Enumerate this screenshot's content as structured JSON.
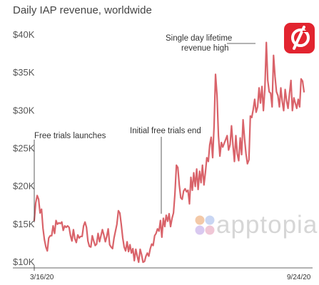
{
  "title": "Daily IAP revenue, worldwide",
  "colors": {
    "line": "#d9636a",
    "logo": "#e2242f",
    "annotation_line": "#333333",
    "axis": "#333333"
  },
  "watermark": {
    "text": "apptopia",
    "icon": "apptopia-logo-icon"
  },
  "app_logo": {
    "icon": "peloton-logo-icon"
  },
  "chart_data": {
    "type": "line",
    "title": "Daily IAP revenue, worldwide",
    "xlabel": "",
    "ylabel": "",
    "x_range": [
      "3/16/20",
      "9/24/20"
    ],
    "x_tick_labels": [
      "3/16/20",
      "9/24/20"
    ],
    "y_tick_labels": [
      "$10K",
      "$15K",
      "$20K",
      "$25K",
      "$30K",
      "$35K",
      "$40K"
    ],
    "y_ticks": [
      10000,
      15000,
      20000,
      25000,
      30000,
      35000,
      40000
    ],
    "ylim": [
      9500,
      41000
    ],
    "grid": false,
    "legend": "none",
    "series": [
      {
        "values": [
          15500,
          17800,
          18800,
          18300,
          16500,
          17000,
          14500,
          13000,
          12000,
          11500,
          13200,
          13500,
          13500,
          14800,
          13800,
          15500,
          15000,
          15200,
          15100,
          15300,
          14200,
          14800,
          14600,
          14800,
          14600,
          13500,
          12800,
          14300,
          13100,
          12600,
          13600,
          13200,
          13400,
          13400,
          14800,
          15300,
          14600,
          12800,
          12100,
          12000,
          13500,
          12800,
          12200,
          12400,
          13800,
          12700,
          13500,
          14300,
          13600,
          12700,
          13400,
          14400,
          12300,
          12000,
          11800,
          13200,
          14100,
          15000,
          16800,
          16500,
          15000,
          13200,
          12000,
          11500,
          12700,
          11400,
          12300,
          11200,
          11800,
          10200,
          11700,
          10800,
          10000,
          11700,
          11000,
          10000,
          10100,
          10800,
          11200,
          10800,
          11800,
          12400,
          12200,
          13500,
          13800,
          14400,
          14100,
          15500,
          13300,
          15800,
          14700,
          16200,
          15400,
          16400,
          14700,
          15800,
          16500,
          19000,
          22800,
          22500,
          20200,
          18500,
          18300,
          19400,
          19700,
          19300,
          19500,
          17700,
          21200,
          19500,
          21800,
          20000,
          22300,
          19600,
          22000,
          20500,
          22800,
          20200,
          21800,
          23800,
          23300,
          25500,
          26500,
          23800,
          28000,
          34800,
          32000,
          26700,
          24000,
          25800,
          25200,
          25700,
          26200,
          26700,
          24800,
          25500,
          28000,
          25500,
          23300,
          26700,
          24300,
          23400,
          26400,
          24200,
          28800,
          26300,
          24300,
          23000,
          23500,
          29300,
          29100,
          30200,
          31500,
          29800,
          30500,
          33000,
          31000,
          33200,
          30000,
          32800,
          39000,
          34000,
          32500,
          32300,
          30500,
          37300,
          34500,
          32500,
          32000,
          30500,
          33000,
          31200,
          30000,
          32800,
          31300,
          30300,
          32300,
          34000,
          30000,
          31700,
          31000,
          30300,
          31500,
          30500,
          34200,
          33900,
          32500
        ]
      }
    ],
    "annotations": [
      {
        "label": "Free trials launches",
        "x": "3/16/20",
        "y": 15500
      },
      {
        "label": "Initial free trials end",
        "x": "6/22/20",
        "y": 15500
      },
      {
        "label_lines": [
          "Single day lifetime",
          "revenue high"
        ],
        "x": "8/23/20",
        "y": 39000
      }
    ]
  }
}
